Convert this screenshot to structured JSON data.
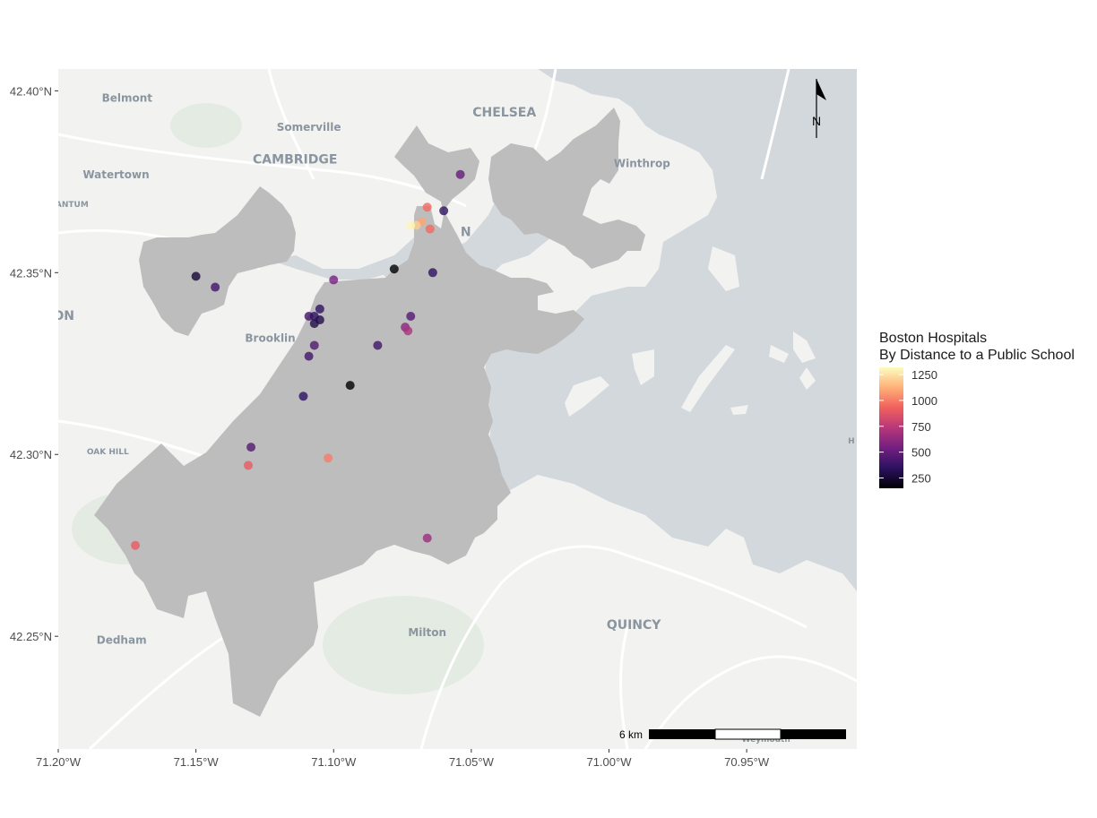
{
  "chart_data": {
    "type": "scatter",
    "map": true,
    "title": "",
    "legend": {
      "title_line1": "Boston Hospitals",
      "title_line2": "By Distance to a Public School",
      "placement": "right",
      "colormap": "magma",
      "range": [
        150,
        1320
      ],
      "ticks": [
        1250,
        1000,
        750,
        500,
        250
      ],
      "tick_labels": [
        "1250",
        "1000",
        "750",
        "500",
        "250"
      ],
      "colors": [
        "#000004",
        "#2c115f",
        "#721f81",
        "#b73779",
        "#f1605d",
        "#feb078",
        "#fcfdbf"
      ]
    },
    "x_axis": {
      "range": [
        -71.2,
        -70.91
      ],
      "ticks": [
        -71.2,
        -71.15,
        -71.1,
        -71.05,
        -71.0,
        -70.95
      ],
      "tick_labels": [
        "71.20°W",
        "71.15°W",
        "71.10°W",
        "71.05°W",
        "71.00°W",
        "70.95°W"
      ]
    },
    "y_axis": {
      "range": [
        42.219,
        42.406
      ],
      "ticks": [
        42.4,
        42.35,
        42.3,
        42.25
      ],
      "tick_labels": [
        "42.40°N",
        "42.35°N",
        "42.30°N",
        "42.25°N"
      ]
    },
    "points": [
      {
        "lon": -71.15,
        "lat": 42.349,
        "value": 250
      },
      {
        "lon": -71.143,
        "lat": 42.346,
        "value": 400
      },
      {
        "lon": -71.054,
        "lat": 42.377,
        "value": 500
      },
      {
        "lon": -71.06,
        "lat": 42.367,
        "value": 350
      },
      {
        "lon": -71.066,
        "lat": 42.368,
        "value": 950
      },
      {
        "lon": -71.065,
        "lat": 42.362,
        "value": 950
      },
      {
        "lon": -71.068,
        "lat": 42.364,
        "value": 1100
      },
      {
        "lon": -71.07,
        "lat": 42.363,
        "value": 1200
      },
      {
        "lon": -71.072,
        "lat": 42.363,
        "value": 1300
      },
      {
        "lon": -71.078,
        "lat": 42.351,
        "value": 150
      },
      {
        "lon": -71.064,
        "lat": 42.35,
        "value": 350
      },
      {
        "lon": -71.1,
        "lat": 42.348,
        "value": 550
      },
      {
        "lon": -71.105,
        "lat": 42.34,
        "value": 350
      },
      {
        "lon": -71.109,
        "lat": 42.338,
        "value": 400
      },
      {
        "lon": -71.107,
        "lat": 42.338,
        "value": 350
      },
      {
        "lon": -71.105,
        "lat": 42.337,
        "value": 300
      },
      {
        "lon": -71.107,
        "lat": 42.336,
        "value": 300
      },
      {
        "lon": -71.072,
        "lat": 42.338,
        "value": 450
      },
      {
        "lon": -71.074,
        "lat": 42.335,
        "value": 600
      },
      {
        "lon": -71.073,
        "lat": 42.334,
        "value": 700
      },
      {
        "lon": -71.107,
        "lat": 42.33,
        "value": 450
      },
      {
        "lon": -71.084,
        "lat": 42.33,
        "value": 400
      },
      {
        "lon": -71.109,
        "lat": 42.327,
        "value": 400
      },
      {
        "lon": -71.094,
        "lat": 42.319,
        "value": 150
      },
      {
        "lon": -71.111,
        "lat": 42.316,
        "value": 350
      },
      {
        "lon": -71.13,
        "lat": 42.302,
        "value": 450
      },
      {
        "lon": -71.131,
        "lat": 42.297,
        "value": 900
      },
      {
        "lon": -71.102,
        "lat": 42.299,
        "value": 1000
      },
      {
        "lon": -71.066,
        "lat": 42.277,
        "value": 650
      },
      {
        "lon": -71.172,
        "lat": 42.275,
        "value": 900
      }
    ]
  },
  "basemap": {
    "labels": [
      {
        "text": "Belmont",
        "lon": -71.175,
        "lat": 42.397,
        "size": "medium"
      },
      {
        "text": "Somerville",
        "lon": -71.109,
        "lat": 42.389,
        "size": "medium"
      },
      {
        "text": "CHELSEA",
        "lon": -71.038,
        "lat": 42.393,
        "size": "large"
      },
      {
        "text": "CAMBRIDGE",
        "lon": -71.114,
        "lat": 42.38,
        "size": "large"
      },
      {
        "text": "Watertown",
        "lon": -71.179,
        "lat": 42.376,
        "size": "medium"
      },
      {
        "text": "Winthrop",
        "lon": -70.988,
        "lat": 42.379,
        "size": "medium"
      },
      {
        "text": "ANTUM",
        "lon": -71.195,
        "lat": 42.368,
        "size": "small"
      },
      {
        "text": "N",
        "lon": -71.052,
        "lat": 42.36,
        "size": "large"
      },
      {
        "text": "ON",
        "lon": -71.198,
        "lat": 42.337,
        "size": "large"
      },
      {
        "text": "Brooklin",
        "lon": -71.123,
        "lat": 42.331,
        "size": "medium"
      },
      {
        "text": "OAK HILL",
        "lon": -71.182,
        "lat": 42.3,
        "size": "small"
      },
      {
        "text": "QUINCY",
        "lon": -70.991,
        "lat": 42.252,
        "size": "large"
      },
      {
        "text": "Milton",
        "lon": -71.066,
        "lat": 42.25,
        "size": "medium"
      },
      {
        "text": "Dedham",
        "lon": -71.177,
        "lat": 42.248,
        "size": "medium"
      },
      {
        "text": "H",
        "lon": -70.912,
        "lat": 42.303,
        "size": "small"
      },
      {
        "text": "Weymouth",
        "lon": -70.943,
        "lat": 42.221,
        "size": "small"
      }
    ]
  },
  "scale_bar": {
    "label": "6 km"
  },
  "north_arrow": {
    "label": "N"
  },
  "colors": {
    "land": "#f2f3f1",
    "water": "#d3d8dc",
    "boston": "#bdbdbd",
    "roads": "#ffffff",
    "park": "#e4ebe2"
  }
}
